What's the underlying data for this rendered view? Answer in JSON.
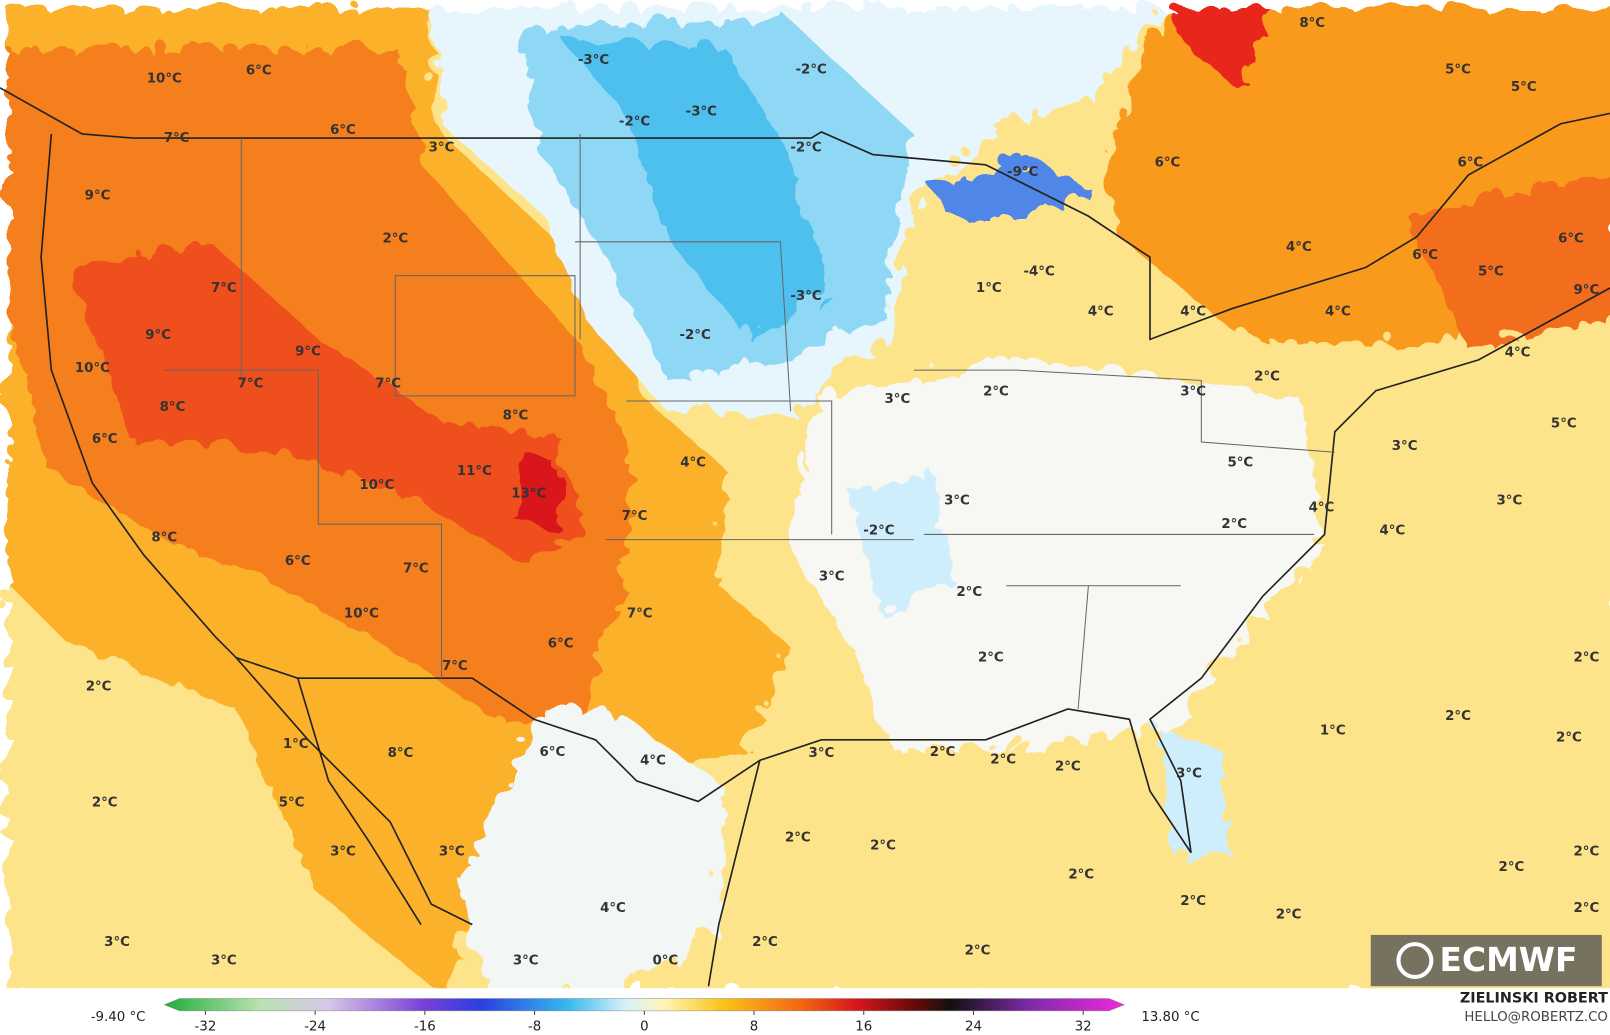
{
  "map": {
    "labels": [
      "10°C",
      "6°C",
      "7°C",
      "6°C",
      "9°C",
      "3°C",
      "-3°C",
      "-2°C",
      "-3°C",
      "-2°C",
      "-2°C",
      "-9°C",
      "8°C",
      "5°C",
      "5°C",
      "6°C",
      "6°C",
      "2°C",
      "4°C",
      "6°C",
      "6°C",
      "5°C",
      "9°C",
      "7°C",
      "1°C",
      "-4°C",
      "-3°C",
      "4°C",
      "4°C",
      "4°C",
      "9°C",
      "9°C",
      "-2°C",
      "4°C",
      "10°C",
      "7°C",
      "7°C",
      "3°C",
      "2°C",
      "3°C",
      "2°C",
      "8°C",
      "8°C",
      "5°C",
      "6°C",
      "4°C",
      "3°C",
      "5°C",
      "11°C",
      "13°C",
      "10°C",
      "3°C",
      "3°C",
      "4°C",
      "8°C",
      "7°C",
      "-2°C",
      "2°C",
      "4°C",
      "6°C",
      "7°C",
      "3°C",
      "2°C",
      "10°C",
      "7°C",
      "6°C",
      "2°C",
      "2°C",
      "7°C",
      "2°C",
      "2°C",
      "1°C",
      "2°C",
      "1°C",
      "8°C",
      "6°C",
      "4°C",
      "3°C",
      "2°C",
      "2°C",
      "2°C",
      "3°C",
      "2°C",
      "5°C",
      "2°C",
      "2°C",
      "3°C",
      "3°C",
      "2°C",
      "2°C",
      "2°C",
      "2°C",
      "2°C",
      "2°C",
      "4°C",
      "3°C",
      "2°C",
      "2°C",
      "3°C",
      "3°C",
      "0°C"
    ]
  },
  "colorbar": {
    "min_label": "-9.40 °C",
    "max_label": "13.80 °C",
    "lim": [
      -35,
      35
    ],
    "ticks": [
      -32,
      -24,
      -16,
      -8,
      0,
      8,
      16,
      24,
      32
    ]
  },
  "credit": {
    "author": "ZIELINSKI ROBERT",
    "email": "HELLO@ROBERTZ.CO"
  },
  "logo": "ECMWF"
}
